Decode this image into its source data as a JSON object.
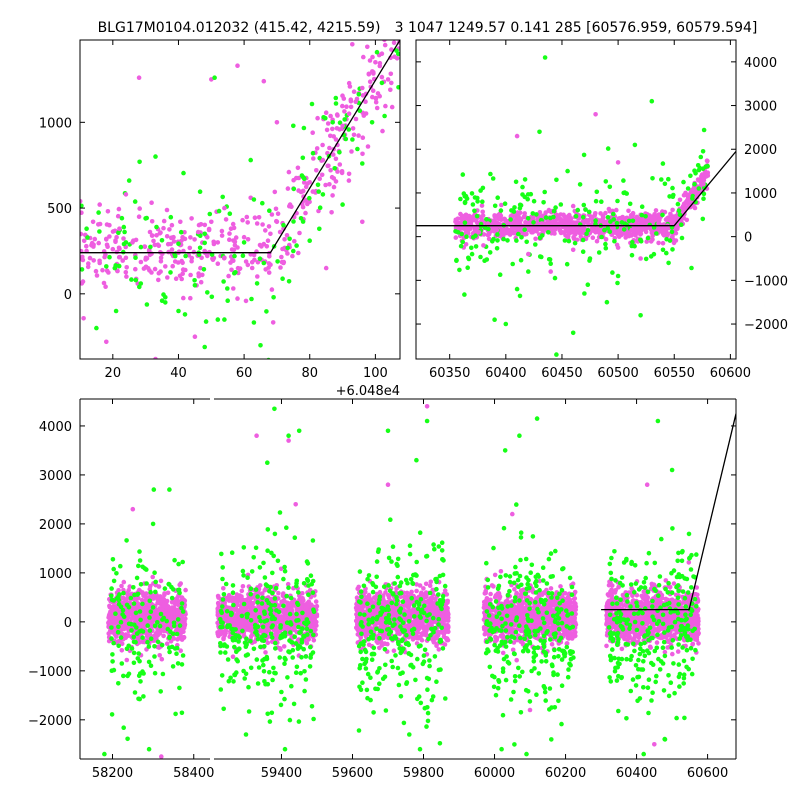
{
  "titles": {
    "left": "BLG17M0104.012032 (415.42, 4215.59)",
    "right": "3 1047 1249.57 0.141 285 [60576.959, 60579.594]"
  },
  "colors": {
    "series_a": "#ee5ee0",
    "series_b": "#16ff16",
    "model": "#000000",
    "axes": "#000000",
    "background": "#ffffff"
  },
  "chart_data": [
    {
      "type": "scatter",
      "panel": "top-left",
      "xlim": [
        10,
        107.5
      ],
      "ylim": [
        -380,
        1480
      ],
      "xticks": [
        20,
        40,
        60,
        80,
        100
      ],
      "yticks": [
        0,
        500,
        1000
      ],
      "x_offset_text": "+6.048e4",
      "baseline_level": 240,
      "break_x": 68,
      "series": [
        {
          "color_key": "series_a",
          "points": [
            [
              12,
              250
            ],
            [
              14,
              420
            ],
            [
              16,
              180
            ],
            [
              18,
              320
            ],
            [
              20,
              260
            ],
            [
              22,
              380
            ],
            [
              24,
              210
            ],
            [
              26,
              300
            ],
            [
              28,
              450
            ],
            [
              30,
              200
            ],
            [
              32,
              340
            ],
            [
              34,
              280
            ],
            [
              36,
              160
            ],
            [
              38,
              400
            ],
            [
              40,
              240
            ],
            [
              42,
              320
            ],
            [
              44,
              190
            ],
            [
              46,
              360
            ],
            [
              48,
              250
            ],
            [
              50,
              420
            ],
            [
              52,
              300
            ],
            [
              54,
              210
            ],
            [
              56,
              380
            ],
            [
              58,
              270
            ],
            [
              60,
              330
            ],
            [
              62,
              230
            ],
            [
              64,
              410
            ],
            [
              66,
              290
            ],
            [
              68,
              350
            ],
            [
              70,
              420
            ],
            [
              72,
              380
            ],
            [
              74,
              520
            ],
            [
              76,
              470
            ],
            [
              78,
              600
            ],
            [
              80,
              650
            ],
            [
              82,
              720
            ],
            [
              84,
              780
            ],
            [
              86,
              850
            ],
            [
              88,
              900
            ],
            [
              90,
              980
            ],
            [
              92,
              1050
            ],
            [
              94,
              1120
            ],
            [
              96,
              1200
            ],
            [
              98,
              1280
            ],
            [
              100,
              1350
            ],
            [
              102,
              1400
            ],
            [
              16,
              520
            ],
            [
              24,
              580
            ],
            [
              34,
              120
            ],
            [
              44,
              440
            ],
            [
              54,
              500
            ],
            [
              62,
              560
            ],
            [
              72,
              180
            ],
            [
              28,
              1260
            ],
            [
              50,
              1250
            ],
            [
              58,
              1330
            ],
            [
              45,
              -250
            ],
            [
              33,
              -380
            ],
            [
              18,
              -280
            ],
            [
              85,
              150
            ],
            [
              96,
              420
            ],
            [
              70,
              1000
            ],
            [
              66,
              1240
            ],
            [
              92,
              700
            ],
            [
              97,
              1120
            ],
            [
              103,
              1450
            ]
          ]
        },
        {
          "color_key": "series_b",
          "points": [
            [
              12,
              380
            ],
            [
              15,
              -200
            ],
            [
              18,
              160
            ],
            [
              21,
              -100
            ],
            [
              24,
              300
            ],
            [
              27,
              80
            ],
            [
              30,
              440
            ],
            [
              33,
              800
            ],
            [
              36,
              -50
            ],
            [
              39,
              220
            ],
            [
              42,
              -120
            ],
            [
              45,
              50
            ],
            [
              48,
              350
            ],
            [
              51,
              1260
            ],
            [
              54,
              -150
            ],
            [
              57,
              120
            ],
            [
              60,
              300
            ],
            [
              63,
              550
            ],
            [
              66,
              180
            ],
            [
              69,
              -20
            ],
            [
              72,
              400
            ],
            [
              75,
              250
            ],
            [
              78,
              680
            ],
            [
              81,
              820
            ],
            [
              84,
              580
            ],
            [
              87,
              1000
            ],
            [
              90,
              520
            ],
            [
              93,
              900
            ],
            [
              96,
              760
            ],
            [
              99,
              1000
            ],
            [
              102,
              1230
            ],
            [
              25,
              660
            ],
            [
              35,
              -40
            ],
            [
              55,
              -40
            ],
            [
              65,
              -300
            ],
            [
              75,
              980
            ],
            [
              88,
              1110
            ],
            [
              62,
              780
            ],
            [
              48,
              -310
            ],
            [
              36,
              -20
            ],
            [
              80,
              310
            ],
            [
              40,
              -100
            ],
            [
              52,
              -150
            ]
          ]
        }
      ],
      "model": [
        [
          10,
          240
        ],
        [
          68,
          240
        ],
        [
          107.5,
          1480
        ]
      ]
    },
    {
      "type": "scatter",
      "panel": "top-right",
      "xlim": [
        60320,
        60605
      ],
      "ylim": [
        -2800,
        4500
      ],
      "xticks": [
        60350,
        60400,
        60450,
        60500,
        60550,
        60600
      ],
      "yticks": [
        -2000,
        -1000,
        0,
        1000,
        2000,
        3000,
        4000
      ],
      "baseline_level": 250,
      "break_x": 60550,
      "series": [
        {
          "color_key": "series_a",
          "points": [
            [
              60360,
              200
            ],
            [
              60368,
              400
            ],
            [
              60376,
              100
            ],
            [
              60384,
              300
            ],
            [
              60392,
              150
            ],
            [
              60400,
              350
            ],
            [
              60408,
              200
            ],
            [
              60416,
              450
            ],
            [
              60424,
              100
            ],
            [
              60432,
              300
            ],
            [
              60440,
              250
            ],
            [
              60448,
              150
            ],
            [
              60456,
              400
            ],
            [
              60464,
              200
            ],
            [
              60472,
              350
            ],
            [
              60480,
              100
            ],
            [
              60488,
              300
            ],
            [
              60496,
              200
            ],
            [
              60504,
              450
            ],
            [
              60512,
              150
            ],
            [
              60520,
              350
            ],
            [
              60528,
              200
            ],
            [
              60536,
              300
            ],
            [
              60544,
              250
            ],
            [
              60552,
              400
            ],
            [
              60558,
              550
            ],
            [
              60564,
              700
            ],
            [
              60570,
              900
            ],
            [
              60576,
              1200
            ],
            [
              60580,
              1400
            ],
            [
              60380,
              -200
            ],
            [
              60420,
              -400
            ],
            [
              60460,
              -300
            ],
            [
              60500,
              -250
            ],
            [
              60540,
              -150
            ],
            [
              60410,
              2300
            ],
            [
              60480,
              2800
            ],
            [
              60460,
              700
            ],
            [
              60500,
              1700
            ],
            [
              60560,
              1000
            ],
            [
              60440,
              -800
            ],
            [
              60520,
              -500
            ]
          ]
        },
        {
          "color_key": "series_b",
          "points": [
            [
              60370,
              -400
            ],
            [
              60390,
              -1900
            ],
            [
              60405,
              600
            ],
            [
              60420,
              -800
            ],
            [
              60435,
              4100
            ],
            [
              60445,
              -2700
            ],
            [
              60455,
              1500
            ],
            [
              60470,
              -1300
            ],
            [
              60485,
              800
            ],
            [
              60500,
              -900
            ],
            [
              60515,
              2100
            ],
            [
              60530,
              3100
            ],
            [
              60545,
              -600
            ],
            [
              60555,
              500
            ],
            [
              60568,
              1200
            ],
            [
              60578,
              1600
            ],
            [
              60430,
              2400
            ],
            [
              60410,
              -1200
            ],
            [
              60460,
              -2200
            ],
            [
              60490,
              -1500
            ],
            [
              60520,
              -1800
            ],
            [
              60400,
              -2000
            ],
            [
              60445,
              1300
            ],
            [
              60475,
              -500
            ],
            [
              60505,
              1000
            ],
            [
              60540,
              -300
            ]
          ]
        }
      ],
      "model": [
        [
          60320,
          250
        ],
        [
          60550,
          250
        ],
        [
          60605,
          1950
        ]
      ]
    },
    {
      "type": "scatter",
      "panel": "bottom-broken",
      "ylim": [
        -2800,
        4550
      ],
      "yticks": [
        -2000,
        -1000,
        0,
        1000,
        2000,
        3000,
        4000
      ],
      "segments": [
        {
          "xlim": [
            58120,
            58440
          ],
          "xticks": [
            58200,
            58400
          ],
          "center": 58285,
          "halfwidth": 95
        },
        {
          "xlim": [
            59210,
            60680
          ],
          "xticks": [
            59400,
            59600,
            59800,
            60000,
            60200,
            60400,
            60600
          ],
          "groups": [
            {
              "center": 59360,
              "halfwidth": 140
            },
            {
              "center": 59740,
              "halfwidth": 130
            },
            {
              "center": 60100,
              "halfwidth": 130
            },
            {
              "center": 60445,
              "halfwidth": 130
            }
          ]
        }
      ],
      "model": [
        [
          60300,
          250
        ],
        [
          60548,
          250
        ],
        [
          60680,
          4250
        ]
      ],
      "outliers": [
        {
          "color_key": "series_b",
          "points": [
            [
              58180,
              -2700
            ],
            [
              58290,
              -2600
            ],
            [
              58340,
              2700
            ],
            [
              58300,
              2000
            ],
            [
              59380,
              4350
            ],
            [
              59360,
              3250
            ],
            [
              59420,
              3800
            ],
            [
              59450,
              3900
            ],
            [
              59410,
              -2600
            ],
            [
              59300,
              -2300
            ],
            [
              59700,
              3900
            ],
            [
              59780,
              3300
            ],
            [
              59810,
              4100
            ],
            [
              59760,
              -2300
            ],
            [
              59790,
              -2600
            ],
            [
              60030,
              3500
            ],
            [
              60070,
              3800
            ],
            [
              60120,
              4150
            ],
            [
              60020,
              -2600
            ],
            [
              60090,
              -2700
            ],
            [
              60160,
              -2400
            ],
            [
              60460,
              4100
            ],
            [
              60500,
              3100
            ],
            [
              60420,
              -2700
            ],
            [
              60480,
              -2400
            ]
          ]
        },
        {
          "color_key": "series_a",
          "points": [
            [
              58250,
              2300
            ],
            [
              58320,
              -2750
            ],
            [
              59330,
              3800
            ],
            [
              59420,
              3700
            ],
            [
              59810,
              4400
            ],
            [
              59700,
              2800
            ],
            [
              60050,
              2200
            ],
            [
              60430,
              2800
            ],
            [
              60450,
              -2500
            ],
            [
              59440,
              2400
            ],
            [
              60100,
              -1800
            ]
          ]
        }
      ]
    }
  ]
}
